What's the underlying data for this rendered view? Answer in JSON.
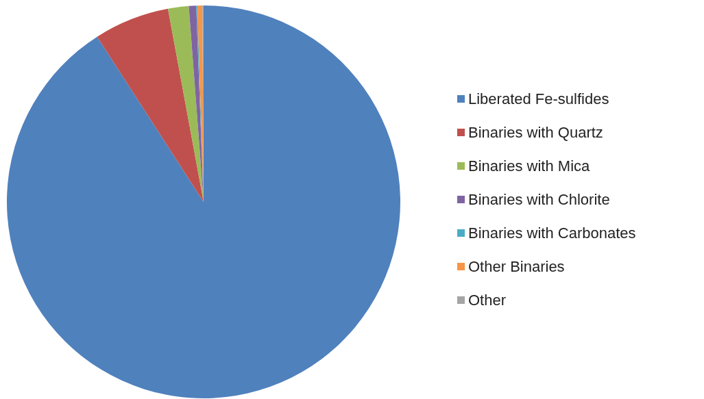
{
  "chart_data": {
    "type": "pie",
    "categories": [
      "Liberated Fe-sulfides",
      "Binaries with Quartz",
      "Binaries with Mica",
      "Binaries with Chlorite",
      "Binaries with Carbonates",
      "Other Binaries",
      "Other"
    ],
    "values": [
      90.9,
      6.2,
      1.7,
      0.6,
      0.1,
      0.4,
      0.1
    ],
    "colors": [
      "#4f81bd",
      "#c0504d",
      "#9bbb59",
      "#8064a2",
      "#4bacc6",
      "#f79646",
      "#a5a5a5"
    ],
    "legend": "right"
  }
}
